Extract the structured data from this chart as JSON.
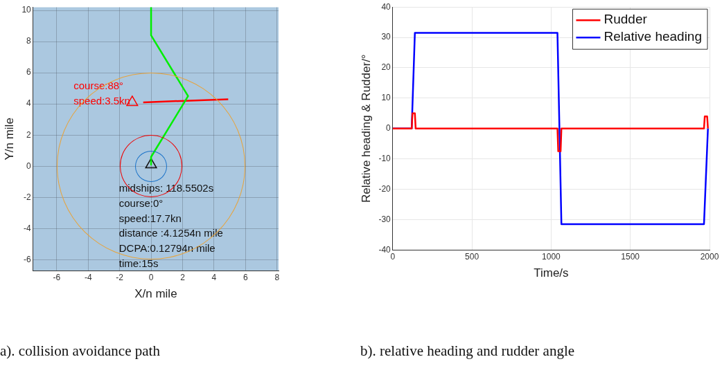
{
  "chart_data": [
    {
      "type": "line",
      "xlabel": "X/n mile",
      "ylabel": "Y/n mile",
      "xlim": [
        -7.5,
        8.1
      ],
      "ylim": [
        -6.7,
        10.2
      ],
      "xticks": [
        -6,
        -4,
        -2,
        0,
        2,
        4,
        6,
        8
      ],
      "yticks": [
        -6,
        -4,
        -2,
        0,
        2,
        4,
        6,
        8,
        10
      ],
      "grid": true,
      "legend": false,
      "marker": "none",
      "series": [
        {
          "color": "#00ee00",
          "x": [
            0,
            0,
            2.35,
            0,
            0
          ],
          "values": [
            10.2,
            8.4,
            4.5,
            0.6,
            0.1
          ]
        },
        {
          "color": "#ff0000",
          "x": [
            -0.5,
            4.9
          ],
          "values": [
            4.1,
            4.3
          ]
        },
        {
          "type": "scatter",
          "marker": "triangle",
          "color": "#111111",
          "x": [
            0
          ],
          "values": [
            0.1
          ]
        },
        {
          "type": "scatter",
          "marker": "triangle",
          "color": "#ff0000",
          "x": [
            -1.2
          ],
          "values": [
            4.1
          ]
        }
      ],
      "annotations": [
        "course:88°",
        "speed:3.5kn",
        "midships: 118.5502s",
        "course:0°",
        "speed:17.7kn",
        "distance :4.1254n mile",
        "DCPA:0.12794n mile",
        "time:15s",
        "a).  collision avoidance path"
      ]
    },
    {
      "type": "line",
      "xlabel": "Time/s",
      "ylabel": "Relative heading & Rudder/°",
      "xlim": [
        0,
        2000
      ],
      "ylim": [
        -40,
        40
      ],
      "xticks": [
        0,
        500,
        1000,
        1500,
        2000
      ],
      "yticks": [
        -40,
        -30,
        -20,
        -10,
        0,
        10,
        20,
        30,
        40
      ],
      "grid": true,
      "legend": "top right",
      "marker": "none",
      "series": [
        {
          "name": "Rudder",
          "color": "#ff0000",
          "x": [
            0,
            120,
            125,
            140,
            145,
            1040,
            1045,
            1060,
            1065,
            1965,
            1970,
            1985,
            1990
          ],
          "values": [
            0,
            0,
            5,
            5,
            0,
            0,
            -7.5,
            -7.5,
            0,
            0,
            4,
            4,
            0
          ]
        },
        {
          "name": "Relative heading",
          "color": "#0000ff",
          "x": [
            0,
            120,
            140,
            1040,
            1065,
            1965,
            1990
          ],
          "values": [
            0,
            0,
            31.5,
            31.5,
            -31.5,
            -31.5,
            0
          ]
        }
      ],
      "annotations": [
        "b). relative heading and rudder angle"
      ]
    }
  ]
}
